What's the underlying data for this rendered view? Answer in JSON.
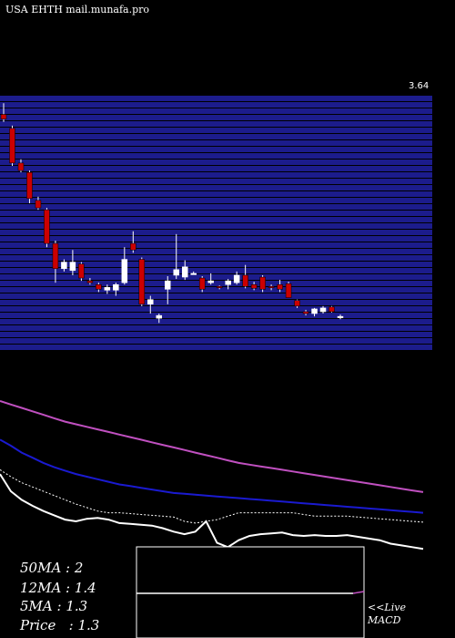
{
  "header": {
    "title": "USA EHTH mail.munafa.pro"
  },
  "price_panel": {
    "ref_label": "3.64"
  },
  "stats": {
    "ma50": "50MA : 2",
    "ma12": "12MA : 1.4",
    "ma5": "5MA : 1.3",
    "price": "Price   : 1.3"
  },
  "macd": {
    "live_label": "<<Live",
    "macd_label": "MACD"
  },
  "colors": {
    "background": "#000000",
    "band": "#1c1c8c",
    "up_candle": "#ffffff",
    "down_candle": "#cc0000",
    "ma50": "#c050c0",
    "ma12": "#1a1ad0",
    "ma5": "#ffffff",
    "macd_line": "#ffffff",
    "macd_signal": "#c050c0"
  },
  "chart_data": [
    {
      "type": "candlestick",
      "title": "USA EHTH mail.munafa.pro",
      "ylim": [
        1.0,
        3.7
      ],
      "candles": [
        {
          "o": 3.5,
          "h": 3.62,
          "l": 3.42,
          "c": 3.45
        },
        {
          "o": 3.35,
          "h": 3.38,
          "l": 2.95,
          "c": 2.98
        },
        {
          "o": 2.98,
          "h": 3.02,
          "l": 2.88,
          "c": 2.9
        },
        {
          "o": 2.88,
          "h": 2.9,
          "l": 2.55,
          "c": 2.6
        },
        {
          "o": 2.58,
          "h": 2.62,
          "l": 2.48,
          "c": 2.5
        },
        {
          "o": 2.48,
          "h": 2.5,
          "l": 2.08,
          "c": 2.12
        },
        {
          "o": 2.12,
          "h": 2.15,
          "l": 1.7,
          "c": 1.85
        },
        {
          "o": 1.85,
          "h": 1.95,
          "l": 1.82,
          "c": 1.92
        },
        {
          "o": 1.83,
          "h": 2.05,
          "l": 1.78,
          "c": 1.92
        },
        {
          "o": 1.9,
          "h": 1.92,
          "l": 1.72,
          "c": 1.75
        },
        {
          "o": 1.72,
          "h": 1.75,
          "l": 1.68,
          "c": 1.7
        },
        {
          "o": 1.68,
          "h": 1.7,
          "l": 1.6,
          "c": 1.63
        },
        {
          "o": 1.62,
          "h": 1.68,
          "l": 1.58,
          "c": 1.65
        },
        {
          "o": 1.62,
          "h": 1.7,
          "l": 1.56,
          "c": 1.68
        },
        {
          "o": 1.7,
          "h": 2.08,
          "l": 1.68,
          "c": 1.95
        },
        {
          "o": 2.12,
          "h": 2.25,
          "l": 2.02,
          "c": 2.05
        },
        {
          "o": 1.95,
          "h": 1.97,
          "l": 1.45,
          "c": 1.47
        },
        {
          "o": 1.47,
          "h": 1.56,
          "l": 1.37,
          "c": 1.52
        },
        {
          "o": 1.32,
          "h": 1.37,
          "l": 1.27,
          "c": 1.35
        },
        {
          "o": 1.63,
          "h": 1.77,
          "l": 1.47,
          "c": 1.72
        },
        {
          "o": 1.78,
          "h": 2.22,
          "l": 1.74,
          "c": 1.84
        },
        {
          "o": 1.76,
          "h": 1.94,
          "l": 1.73,
          "c": 1.87
        },
        {
          "o": 1.8,
          "h": 1.82,
          "l": 1.79,
          "c": 1.8
        },
        {
          "o": 1.75,
          "h": 1.77,
          "l": 1.6,
          "c": 1.63
        },
        {
          "o": 1.7,
          "h": 1.8,
          "l": 1.68,
          "c": 1.72
        },
        {
          "o": 1.66,
          "h": 1.67,
          "l": 1.63,
          "c": 1.65
        },
        {
          "o": 1.68,
          "h": 1.74,
          "l": 1.63,
          "c": 1.72
        },
        {
          "o": 1.7,
          "h": 1.82,
          "l": 1.68,
          "c": 1.78
        },
        {
          "o": 1.78,
          "h": 1.89,
          "l": 1.64,
          "c": 1.66
        },
        {
          "o": 1.68,
          "h": 1.71,
          "l": 1.62,
          "c": 1.64
        },
        {
          "o": 1.76,
          "h": 1.78,
          "l": 1.6,
          "c": 1.63
        },
        {
          "o": 1.66,
          "h": 1.68,
          "l": 1.62,
          "c": 1.65
        },
        {
          "o": 1.68,
          "h": 1.73,
          "l": 1.6,
          "c": 1.63
        },
        {
          "o": 1.69,
          "h": 1.71,
          "l": 1.55,
          "c": 1.54
        },
        {
          "o": 1.51,
          "h": 1.52,
          "l": 1.43,
          "c": 1.45
        },
        {
          "o": 1.39,
          "h": 1.41,
          "l": 1.35,
          "c": 1.37
        },
        {
          "o": 1.37,
          "h": 1.43,
          "l": 1.34,
          "c": 1.42
        },
        {
          "o": 1.39,
          "h": 1.45,
          "l": 1.37,
          "c": 1.43
        },
        {
          "o": 1.44,
          "h": 1.45,
          "l": 1.38,
          "c": 1.39
        },
        {
          "o": 1.33,
          "h": 1.36,
          "l": 1.31,
          "c": 1.34
        }
      ]
    },
    {
      "type": "line",
      "series": [
        {
          "color_key": "ma50",
          "values": [
            100,
            96,
            92,
            88,
            84,
            80,
            76,
            73,
            70,
            67,
            64,
            61,
            58,
            55,
            52,
            49,
            46,
            43,
            40,
            37,
            34,
            31,
            28,
            26,
            24,
            22,
            20,
            18,
            16,
            14,
            12,
            10,
            8,
            6,
            4,
            2,
            0,
            -2,
            -4,
            -6
          ]
        },
        {
          "color_key": "ma12",
          "values": [
            55,
            48,
            40,
            34,
            28,
            23,
            19,
            15,
            12,
            9,
            6,
            3,
            1,
            -1,
            -3,
            -5,
            -7,
            -8,
            -9,
            -10,
            -11,
            -12,
            -13,
            -14,
            -15,
            -16,
            -17,
            -18,
            -19,
            -20,
            -21,
            -22,
            -23,
            -24,
            -25,
            -26,
            -27,
            -28,
            -29,
            -30
          ]
        },
        {
          "color_key": "ma5",
          "values": [
            20,
            12,
            5,
            0,
            -5,
            -10,
            -15,
            -20,
            -24,
            -28,
            -30,
            -30,
            -31,
            -32,
            -33,
            -34,
            -35,
            -40,
            -42,
            -40,
            -38,
            -34,
            -30,
            -30,
            -30,
            -30,
            -30,
            -30,
            -32,
            -34,
            -34,
            -34,
            -34,
            -35,
            -36,
            -37,
            -38,
            -39,
            -40,
            -41
          ]
        },
        {
          "color_key": "macd_line",
          "values": [
            15,
            -5,
            -15,
            -22,
            -28,
            -33,
            -38,
            -40,
            -37,
            -36,
            -38,
            -42,
            -43,
            -44,
            -45,
            -48,
            -52,
            -55,
            -52,
            -40,
            -65,
            -70,
            -62,
            -57,
            -55,
            -54,
            -53,
            -56,
            -57,
            -56,
            -57,
            -57,
            -56,
            -58,
            -60,
            -62,
            -66,
            -68,
            -70,
            -72
          ]
        }
      ]
    }
  ]
}
